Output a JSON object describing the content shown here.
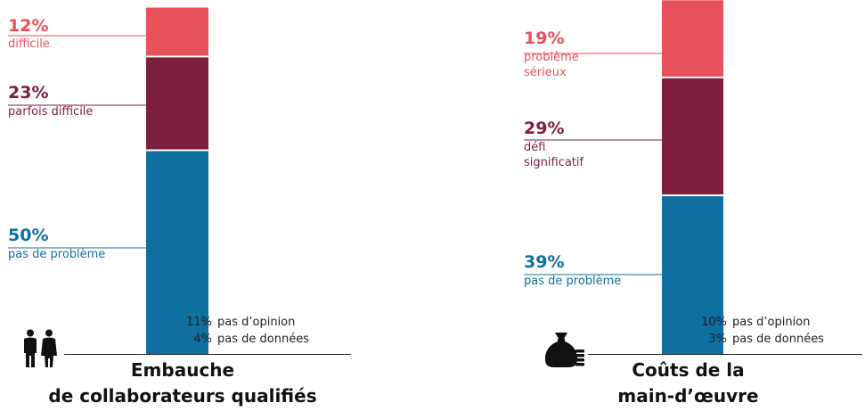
{
  "colors": {
    "red": "#e8505b",
    "maroon": "#7c1e3c",
    "blue": "#0f6f9f",
    "text": "#222222"
  },
  "chart_data": [
    {
      "type": "bar",
      "stacked": true,
      "title": "Embauche de collaborateurs qualifiés",
      "title_lines": [
        "Embauche",
        "de collaborateurs qualifiés"
      ],
      "ylim": [
        0,
        100
      ],
      "segments": [
        {
          "name": "pas de problème",
          "value": 50,
          "label": "50%",
          "color": "#0f6f9f"
        },
        {
          "name": "parfois difficile",
          "value": 23,
          "label": "23%",
          "color": "#7c1e3c"
        },
        {
          "name": "difficile",
          "value": 12,
          "label": "12%",
          "color": "#e8505b"
        }
      ],
      "notes": [
        {
          "value": "11%",
          "text": "pas d’opinion"
        },
        {
          "value": "4%",
          "text": "pas de données"
        }
      ],
      "icon": "people-icon"
    },
    {
      "type": "bar",
      "stacked": true,
      "title": "Coûts de la main-d’œuvre",
      "title_lines": [
        "Coûts de la",
        "main-d’œuvre"
      ],
      "ylim": [
        0,
        100
      ],
      "segments": [
        {
          "name": "pas de problème",
          "value": 39,
          "label": "39%",
          "color": "#0f6f9f"
        },
        {
          "name": "défi\nsignificatif",
          "value": 29,
          "label": "29%",
          "color": "#7c1e3c"
        },
        {
          "name": "problème\nsérieux",
          "value": 19,
          "label": "19%",
          "color": "#e8505b"
        }
      ],
      "notes": [
        {
          "value": "10%",
          "text": "pas d’opinion"
        },
        {
          "value": "3%",
          "text": "pas de données"
        }
      ],
      "icon": "money-bag-icon"
    }
  ]
}
